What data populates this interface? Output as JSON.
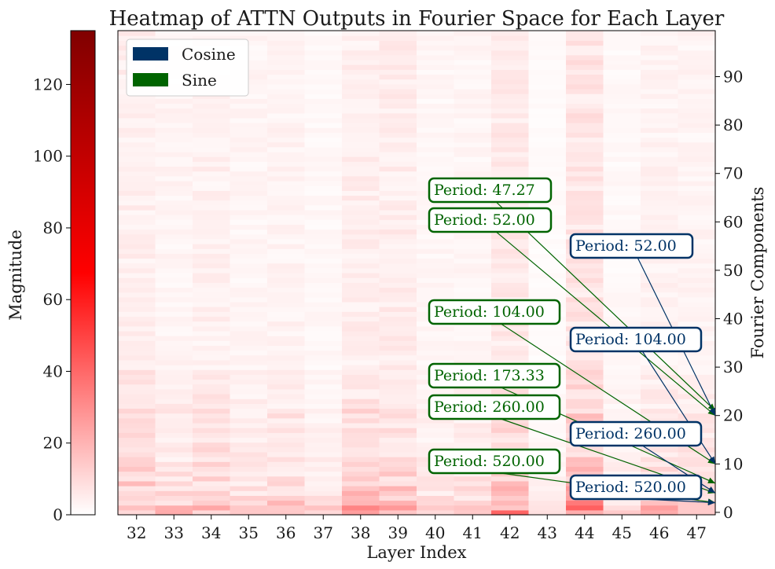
{
  "chart_data": {
    "type": "heatmap",
    "title": "Heatmap of ATTN Outputs in Fourier Space for Each Layer",
    "xlabel": "Layer Index",
    "ylabel": "Fourier Components",
    "x": [
      32,
      33,
      34,
      35,
      36,
      37,
      38,
      39,
      40,
      41,
      42,
      43,
      44,
      45,
      46,
      47
    ],
    "y_tick_labels": [
      "0",
      "10",
      "20",
      "30",
      "40",
      "50",
      "60",
      "70",
      "80",
      "90"
    ],
    "ylim": [
      0,
      99
    ],
    "colorbar": {
      "label": "Magnitude",
      "range": [
        0,
        135
      ],
      "tick_labels": [
        "0",
        "20",
        "40",
        "60",
        "80",
        "100",
        "120"
      ],
      "colors": [
        "#ffffff",
        "#ff0000",
        "#800000"
      ]
    },
    "legend": {
      "placement": "top-left",
      "entries": [
        {
          "label": "Cosine",
          "color": "#003366"
        },
        {
          "label": "Sine",
          "color": "#006400"
        }
      ]
    },
    "column_mean_magnitude": [
      7.5,
      5,
      6.5,
      4.5,
      5.5,
      3.5,
      7.5,
      8,
      4,
      4.5,
      9,
      2,
      11,
      3,
      5.5,
      5
    ],
    "component_profile": [
      30,
      34,
      24,
      20,
      19,
      17,
      16,
      15,
      14,
      14,
      13,
      12,
      12,
      12,
      11,
      10,
      10,
      10,
      10,
      10,
      14,
      12,
      10,
      9,
      9,
      9,
      8,
      8,
      8,
      8
    ],
    "annotations": [
      {
        "text": "Period: 47.27",
        "series": "Sine",
        "component": 21
      },
      {
        "text": "Period: 52.00",
        "series": "Sine",
        "component": 20
      },
      {
        "text": "Period: 104.00",
        "series": "Sine",
        "component": 10
      },
      {
        "text": "Period: 173.33",
        "series": "Sine",
        "component": 6
      },
      {
        "text": "Period: 260.00",
        "series": "Sine",
        "component": 4
      },
      {
        "text": "Period: 520.00",
        "series": "Sine",
        "component": 2
      },
      {
        "text": "Period: 52.00",
        "series": "Cosine",
        "component": 20
      },
      {
        "text": "Period: 104.00",
        "series": "Cosine",
        "component": 10
      },
      {
        "text": "Period: 260.00",
        "series": "Cosine",
        "component": 4
      },
      {
        "text": "Period: 520.00",
        "series": "Cosine",
        "component": 2
      }
    ]
  }
}
